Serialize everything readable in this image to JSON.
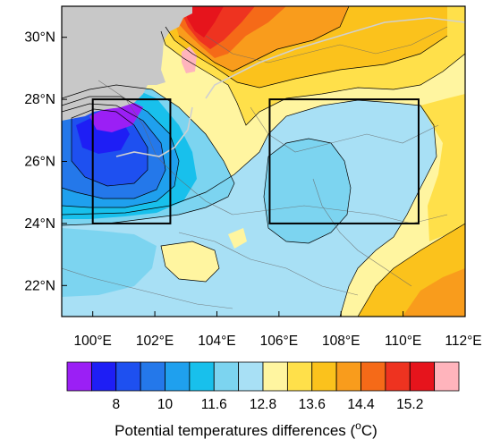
{
  "map": {
    "x_ticks": [
      "100°E",
      "102°E",
      "104°E",
      "106°E",
      "108°E",
      "110°E",
      "112°E"
    ],
    "y_ticks": [
      "30°N",
      "28°N",
      "26°N",
      "24°N",
      "22°N"
    ],
    "lon_range": [
      99,
      112
    ],
    "lat_range": [
      21,
      31
    ],
    "missing_color": "#c8c8c8",
    "boxes": [
      {
        "name": "west-box",
        "lon": [
          100,
          102.5
        ],
        "lat": [
          24,
          28
        ]
      },
      {
        "name": "east-box",
        "lon": [
          105.7,
          110.5
        ],
        "lat": [
          24,
          28
        ]
      }
    ]
  },
  "colorbar": {
    "title": "Potential temperatures differences (",
    "title_unit_super": "o",
    "title_unit": "C)",
    "tick_labels": [
      "8",
      "10",
      "11.6",
      "12.8",
      "13.6",
      "14.4",
      "15.2"
    ],
    "colors": [
      "#9b1ff5",
      "#1e1ef5",
      "#1e50f0",
      "#2478ea",
      "#1fa0ee",
      "#18c0ec",
      "#7cd4f0",
      "#a8e0f5",
      "#fff5a0",
      "#ffe04a",
      "#fbc21c",
      "#f99c1c",
      "#f56a18",
      "#ee3320",
      "#e6141c",
      "#ffb4bc"
    ]
  }
}
